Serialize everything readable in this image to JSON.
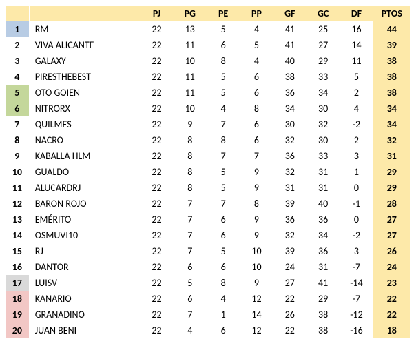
{
  "colors": {
    "header_bg": "#fde9a9",
    "ptos_bg": "#fde9a9",
    "rank_blue": "#b8cce4",
    "rank_green": "#c4d79b",
    "rank_gray": "#d9d9d9",
    "rank_pink": "#f2c7c5",
    "rank_default": "#ffffff",
    "row_bg": "#ffffff",
    "text": "#000000"
  },
  "fontsize": 14,
  "columns": [
    "",
    "",
    "PJ",
    "PG",
    "PE",
    "PP",
    "GF",
    "GC",
    "DF",
    "PTOS"
  ],
  "rank_styles": {
    "1": "rank_blue",
    "5": "rank_green",
    "6": "rank_green",
    "17": "rank_gray",
    "18": "rank_pink",
    "19": "rank_pink",
    "20": "rank_pink"
  },
  "rows": [
    {
      "rank": 1,
      "team": "RM",
      "pj": 22,
      "pg": 13,
      "pe": 5,
      "pp": 4,
      "gf": 41,
      "gc": 25,
      "df": 16,
      "ptos": 44
    },
    {
      "rank": 2,
      "team": "VIVA ALICANTE",
      "pj": 22,
      "pg": 11,
      "pe": 6,
      "pp": 5,
      "gf": 41,
      "gc": 27,
      "df": 14,
      "ptos": 39
    },
    {
      "rank": 3,
      "team": "GALAXY",
      "pj": 22,
      "pg": 10,
      "pe": 8,
      "pp": 4,
      "gf": 40,
      "gc": 29,
      "df": 11,
      "ptos": 38
    },
    {
      "rank": 4,
      "team": "PIRESTHEBEST",
      "pj": 22,
      "pg": 11,
      "pe": 5,
      "pp": 6,
      "gf": 38,
      "gc": 33,
      "df": 5,
      "ptos": 38
    },
    {
      "rank": 5,
      "team": "OTO GOIEN",
      "pj": 22,
      "pg": 11,
      "pe": 5,
      "pp": 6,
      "gf": 36,
      "gc": 34,
      "df": 2,
      "ptos": 38
    },
    {
      "rank": 6,
      "team": "NITRORX",
      "pj": 22,
      "pg": 10,
      "pe": 4,
      "pp": 8,
      "gf": 34,
      "gc": 30,
      "df": 4,
      "ptos": 34
    },
    {
      "rank": 7,
      "team": "QUILMES",
      "pj": 22,
      "pg": 9,
      "pe": 7,
      "pp": 6,
      "gf": 30,
      "gc": 32,
      "df": -2,
      "ptos": 34
    },
    {
      "rank": 8,
      "team": "NACRO",
      "pj": 22,
      "pg": 8,
      "pe": 8,
      "pp": 6,
      "gf": 32,
      "gc": 30,
      "df": 2,
      "ptos": 32
    },
    {
      "rank": 9,
      "team": "KABALLA HLM",
      "pj": 22,
      "pg": 8,
      "pe": 7,
      "pp": 7,
      "gf": 36,
      "gc": 33,
      "df": 3,
      "ptos": 31
    },
    {
      "rank": 10,
      "team": "GUALDO",
      "pj": 22,
      "pg": 8,
      "pe": 5,
      "pp": 9,
      "gf": 32,
      "gc": 31,
      "df": 1,
      "ptos": 29
    },
    {
      "rank": 11,
      "team": "ALUCARDRJ",
      "pj": 22,
      "pg": 8,
      "pe": 5,
      "pp": 9,
      "gf": 31,
      "gc": 31,
      "df": 0,
      "ptos": 29
    },
    {
      "rank": 12,
      "team": "BARON ROJO",
      "pj": 22,
      "pg": 7,
      "pe": 7,
      "pp": 8,
      "gf": 39,
      "gc": 40,
      "df": -1,
      "ptos": 28
    },
    {
      "rank": 13,
      "team": "EMÉRITO",
      "pj": 22,
      "pg": 7,
      "pe": 6,
      "pp": 9,
      "gf": 36,
      "gc": 36,
      "df": 0,
      "ptos": 27
    },
    {
      "rank": 14,
      "team": "OSMUVI10",
      "pj": 22,
      "pg": 7,
      "pe": 6,
      "pp": 9,
      "gf": 32,
      "gc": 34,
      "df": -2,
      "ptos": 27
    },
    {
      "rank": 15,
      "team": "RJ",
      "pj": 22,
      "pg": 7,
      "pe": 5,
      "pp": 10,
      "gf": 39,
      "gc": 36,
      "df": 3,
      "ptos": 26
    },
    {
      "rank": 16,
      "team": "DANTOR",
      "pj": 22,
      "pg": 6,
      "pe": 6,
      "pp": 10,
      "gf": 24,
      "gc": 31,
      "df": -7,
      "ptos": 24
    },
    {
      "rank": 17,
      "team": "LUISV",
      "pj": 22,
      "pg": 5,
      "pe": 8,
      "pp": 9,
      "gf": 27,
      "gc": 41,
      "df": -14,
      "ptos": 23
    },
    {
      "rank": 18,
      "team": "KANARIO",
      "pj": 22,
      "pg": 6,
      "pe": 4,
      "pp": 12,
      "gf": 22,
      "gc": 29,
      "df": -7,
      "ptos": 22
    },
    {
      "rank": 19,
      "team": "GRANADINO",
      "pj": 22,
      "pg": 7,
      "pe": 1,
      "pp": 14,
      "gf": 26,
      "gc": 38,
      "df": -12,
      "ptos": 22
    },
    {
      "rank": 20,
      "team": "JUAN BENI",
      "pj": 22,
      "pg": 4,
      "pe": 6,
      "pp": 12,
      "gf": 22,
      "gc": 38,
      "df": -16,
      "ptos": 18
    }
  ]
}
